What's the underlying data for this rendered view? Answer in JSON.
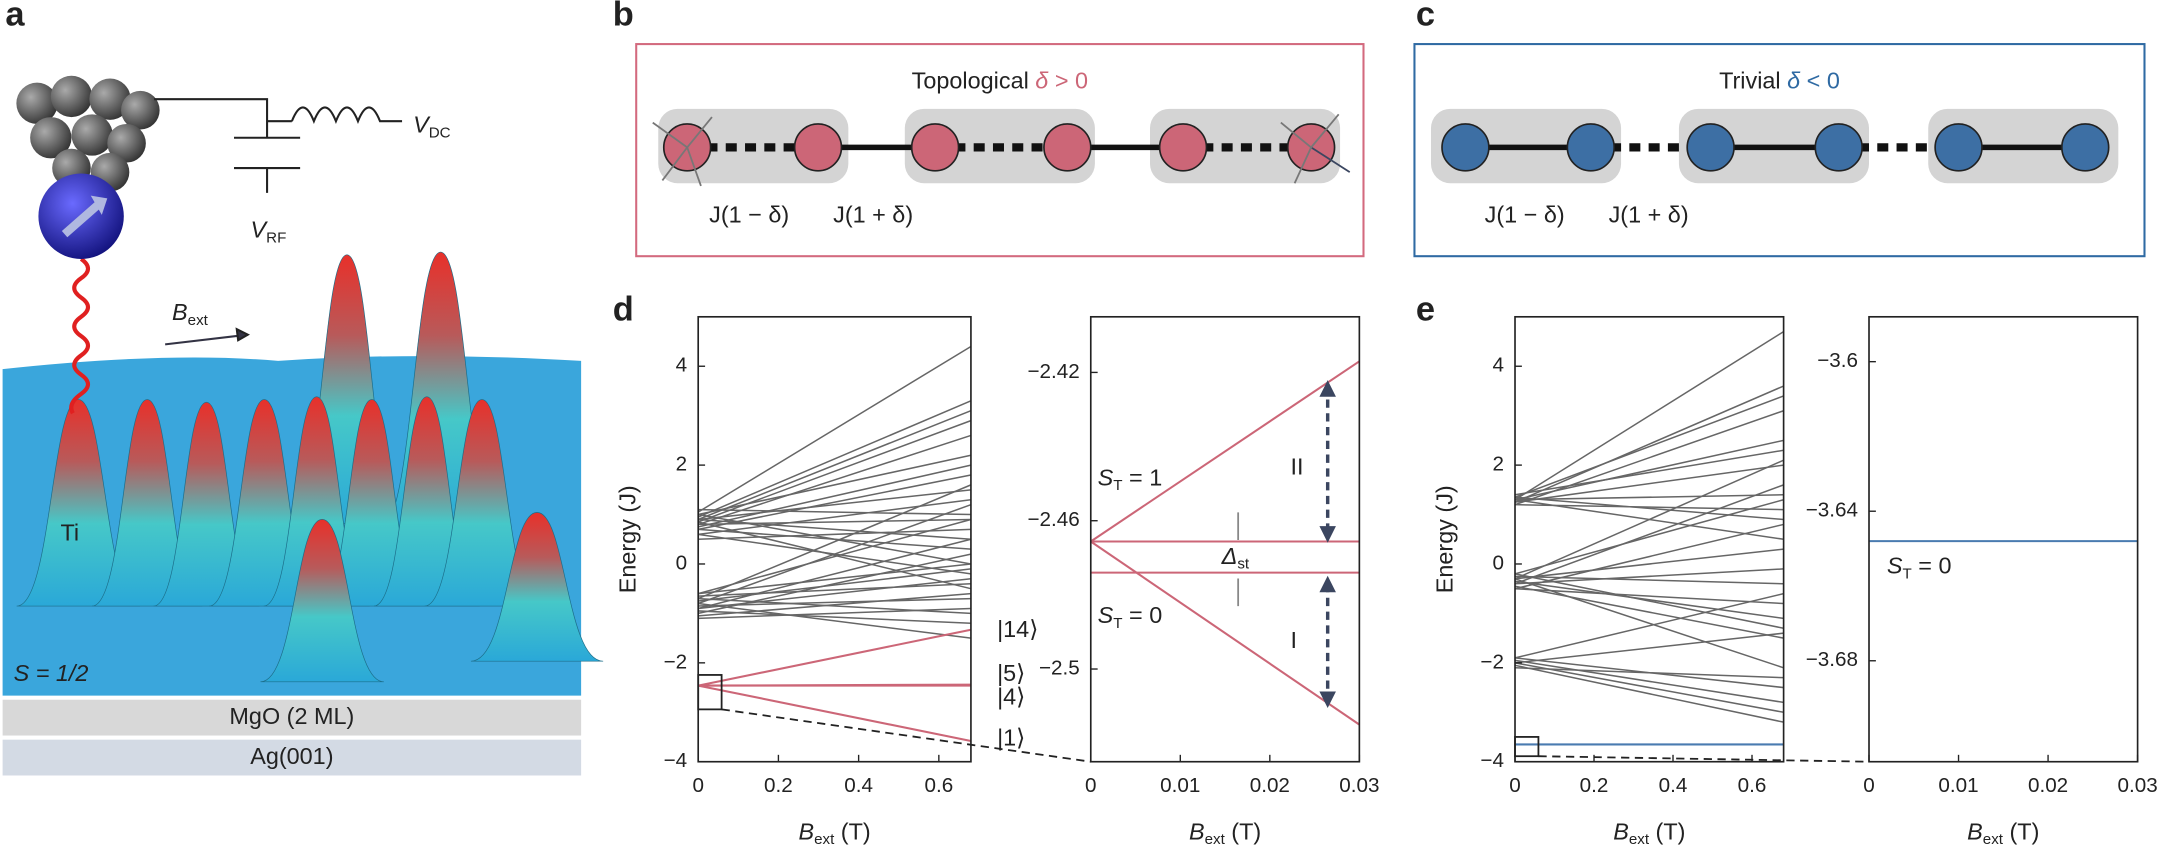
{
  "panel_labels": [
    "a",
    "b",
    "c",
    "d",
    "e"
  ],
  "panel_a": {
    "v_dc": {
      "main": "V",
      "sub": "DC"
    },
    "v_rf": {
      "main": "V",
      "sub": "RF"
    },
    "b_ext": {
      "main": "B",
      "sub": "ext"
    },
    "ti": "Ti",
    "spin": "S = 1/2",
    "layers": [
      "MgO (2 ML)",
      "Ag(001)"
    ]
  },
  "diagrams": [
    {
      "title": "Topological ",
      "symbol": "δ",
      "condition": " > 0",
      "labels": [
        "J(1 − δ)",
        "J(1 + δ)"
      ]
    },
    {
      "title": "Trivial ",
      "symbol": "δ",
      "condition": " < 0",
      "labels": [
        "J(1 − δ)",
        "J(1 + δ)"
      ]
    }
  ],
  "chart_data": [
    {
      "type": "line",
      "ylabel": "Energy (J)",
      "xlabel": {
        "main": "B",
        "sub": "ext",
        "rest": " (T)"
      },
      "x": [
        0,
        0.68
      ],
      "xlim": [
        0,
        0.68
      ],
      "xticks": [
        0,
        0.2,
        0.4,
        0.6
      ],
      "ylim": [
        -4,
        5
      ],
      "yticks": [
        {
          "value": -4,
          "label": "−4"
        },
        {
          "value": -2,
          "label": "−2"
        },
        0,
        2,
        4
      ],
      "series": [
        {
          "color": "#666666",
          "values": [
            1.05,
            4.4
          ]
        },
        {
          "color": "#666666",
          "values": [
            0.95,
            3.3
          ]
        },
        {
          "color": "#666666",
          "values": [
            0.9,
            3.1
          ]
        },
        {
          "color": "#666666",
          "values": [
            0.85,
            2.9
          ]
        },
        {
          "color": "#666666",
          "values": [
            0.8,
            2.6
          ]
        },
        {
          "color": "#666666",
          "values": [
            1.0,
            2.2
          ]
        },
        {
          "color": "#666666",
          "values": [
            0.75,
            2.0
          ]
        },
        {
          "color": "#666666",
          "values": [
            0.7,
            1.8
          ]
        },
        {
          "color": "#666666",
          "values": [
            0.9,
            1.5
          ]
        },
        {
          "color": "#666666",
          "values": [
            0.6,
            1.3
          ]
        },
        {
          "color": "#666666",
          "values": [
            1.1,
            1.0
          ]
        },
        {
          "color": "#666666",
          "values": [
            0.8,
            0.9
          ]
        },
        {
          "color": "#666666",
          "values": [
            0.5,
            0.7
          ]
        },
        {
          "color": "#666666",
          "values": [
            0.9,
            0.5
          ]
        },
        {
          "color": "#666666",
          "values": [
            0.7,
            0.3
          ]
        },
        {
          "color": "#666666",
          "values": [
            1.0,
            0.0
          ]
        },
        {
          "color": "#666666",
          "values": [
            0.6,
            -0.2
          ]
        },
        {
          "color": "#666666",
          "values": [
            0.85,
            -0.5
          ]
        },
        {
          "color": "#666666",
          "values": [
            -0.7,
            1.6
          ]
        },
        {
          "color": "#666666",
          "values": [
            -0.8,
            1.2
          ]
        },
        {
          "color": "#666666",
          "values": [
            -0.6,
            0.9
          ]
        },
        {
          "color": "#666666",
          "values": [
            -0.9,
            0.5
          ]
        },
        {
          "color": "#666666",
          "values": [
            -1.0,
            0.2
          ]
        },
        {
          "color": "#666666",
          "values": [
            -0.75,
            -0.1
          ]
        },
        {
          "color": "#666666",
          "values": [
            -0.65,
            -0.4
          ]
        },
        {
          "color": "#666666",
          "values": [
            -0.85,
            -0.7
          ]
        },
        {
          "color": "#666666",
          "values": [
            -1.1,
            -0.9
          ]
        },
        {
          "color": "#666666",
          "values": [
            -0.7,
            -1.0
          ]
        },
        {
          "color": "#666666",
          "values": [
            -0.95,
            -1.2
          ]
        },
        {
          "color": "#666666",
          "values": [
            -0.8,
            -1.5
          ]
        },
        {
          "color": "#666666",
          "values": [
            -1.05,
            -0.6
          ]
        },
        {
          "color": "#666666",
          "values": [
            -0.6,
            0.0
          ]
        },
        {
          "color": "#666666",
          "values": [
            -0.9,
            -0.3
          ]
        },
        {
          "color": "#cc6677",
          "values": [
            -2.46,
            -1.33
          ]
        },
        {
          "color": "#cc6677",
          "values": [
            -2.46,
            -2.44
          ]
        },
        {
          "color": "#cc6677",
          "values": [
            -2.46,
            -2.46
          ]
        },
        {
          "color": "#cc6677",
          "values": [
            -2.46,
            -3.58
          ]
        }
      ],
      "annotations": [
        {
          "main": "|14⟩"
        },
        {
          "main": "|5⟩"
        },
        {
          "main": "|4⟩"
        },
        {
          "main": "|1⟩"
        }
      ]
    },
    {
      "type": "line",
      "xlabel": {
        "main": "B",
        "sub": "ext",
        "rest": " (T)"
      },
      "x": [
        0,
        0.03
      ],
      "xlim": [
        0,
        0.03
      ],
      "xticks": [
        0,
        0.01,
        0.02,
        0.03
      ],
      "ylim": [
        -2.525,
        -2.405
      ],
      "yticks": [
        {
          "value": -2.5,
          "label": "−2.5"
        },
        {
          "value": -2.46,
          "label": "−2.46"
        },
        {
          "value": -2.42,
          "label": "−2.42"
        }
      ],
      "series": [
        {
          "color": "#cc6677",
          "values": [
            -2.4656,
            -2.417
          ]
        },
        {
          "color": "#cc6677",
          "values": [
            -2.4656,
            -2.4656
          ]
        },
        {
          "color": "#cc6677",
          "values": [
            -2.474,
            -2.474
          ]
        },
        {
          "color": "#cc6677",
          "values": [
            -2.4656,
            -2.515
          ]
        }
      ],
      "annotations": [
        {
          "main": "S",
          "sub": "T",
          "rest": " = 1"
        },
        {
          "main": "S",
          "sub": "T",
          "rest": " = 0"
        },
        {
          "main": "II"
        },
        {
          "main": "I"
        },
        {
          "main": "Δ",
          "sub": "st"
        }
      ]
    },
    {
      "type": "line",
      "ylabel": "Energy (J)",
      "xlabel": {
        "main": "B",
        "sub": "ext",
        "rest": " (T)"
      },
      "x": [
        0,
        0.68
      ],
      "xlim": [
        0,
        0.68
      ],
      "xticks": [
        0,
        0.2,
        0.4,
        0.6
      ],
      "ylim": [
        -4,
        5
      ],
      "yticks": [
        {
          "value": -4,
          "label": "−4"
        },
        {
          "value": -2,
          "label": "−2"
        },
        0,
        2,
        4
      ],
      "series": [
        {
          "color": "#666666",
          "values": [
            1.3,
            4.7
          ]
        },
        {
          "color": "#666666",
          "values": [
            1.25,
            3.6
          ]
        },
        {
          "color": "#666666",
          "values": [
            1.35,
            3.4
          ]
        },
        {
          "color": "#666666",
          "values": [
            1.2,
            3.1
          ]
        },
        {
          "color": "#666666",
          "values": [
            1.3,
            2.5
          ]
        },
        {
          "color": "#666666",
          "values": [
            1.4,
            2.3
          ]
        },
        {
          "color": "#666666",
          "values": [
            1.25,
            2.0
          ]
        },
        {
          "color": "#666666",
          "values": [
            1.3,
            1.4
          ]
        },
        {
          "color": "#666666",
          "values": [
            1.2,
            1.1
          ]
        },
        {
          "color": "#666666",
          "values": [
            1.35,
            0.9
          ]
        },
        {
          "color": "#666666",
          "values": [
            1.3,
            0.5
          ]
        },
        {
          "color": "#666666",
          "values": [
            -0.3,
            2.1
          ]
        },
        {
          "color": "#666666",
          "values": [
            -0.4,
            1.6
          ]
        },
        {
          "color": "#666666",
          "values": [
            -0.2,
            1.3
          ]
        },
        {
          "color": "#666666",
          "values": [
            -0.5,
            0.8
          ]
        },
        {
          "color": "#666666",
          "values": [
            -0.3,
            0.3
          ]
        },
        {
          "color": "#666666",
          "values": [
            -0.4,
            -0.1
          ]
        },
        {
          "color": "#666666",
          "values": [
            -0.25,
            -0.4
          ]
        },
        {
          "color": "#666666",
          "values": [
            -0.5,
            -0.8
          ]
        },
        {
          "color": "#666666",
          "values": [
            -0.35,
            -1.1
          ]
        },
        {
          "color": "#666666",
          "values": [
            -0.45,
            -1.5
          ]
        },
        {
          "color": "#666666",
          "values": [
            -0.3,
            -2.1
          ]
        },
        {
          "color": "#666666",
          "values": [
            -0.2,
            -1.3
          ]
        },
        {
          "color": "#666666",
          "values": [
            -1.9,
            -0.6
          ]
        },
        {
          "color": "#666666",
          "values": [
            -2.0,
            -1.4
          ]
        },
        {
          "color": "#666666",
          "values": [
            -2.1,
            -2.3
          ]
        },
        {
          "color": "#666666",
          "values": [
            -1.95,
            -2.8
          ]
        },
        {
          "color": "#666666",
          "values": [
            -2.05,
            -3.2
          ]
        },
        {
          "color": "#666666",
          "values": [
            -2.0,
            -3.0
          ]
        },
        {
          "color": "#666666",
          "values": [
            -1.9,
            -2.5
          ]
        },
        {
          "color": "#4a7bb0",
          "values": [
            -3.65,
            -3.65
          ]
        }
      ]
    },
    {
      "type": "line",
      "xlabel": {
        "main": "B",
        "sub": "ext",
        "rest": " (T)"
      },
      "x": [
        0,
        0.03
      ],
      "xlim": [
        0,
        0.03
      ],
      "xticks": [
        0,
        0.01,
        0.02,
        0.03
      ],
      "ylim": [
        -3.707,
        -3.588
      ],
      "yticks": [
        {
          "value": -3.68,
          "label": "−3.68"
        },
        {
          "value": -3.64,
          "label": "−3.64"
        },
        {
          "value": -3.6,
          "label": "−3.6"
        }
      ],
      "series": [
        {
          "color": "#4a7bb0",
          "values": [
            -3.648,
            -3.648
          ]
        }
      ],
      "annotations": [
        {
          "main": "S",
          "sub": "T",
          "rest": " = 0"
        }
      ]
    }
  ]
}
